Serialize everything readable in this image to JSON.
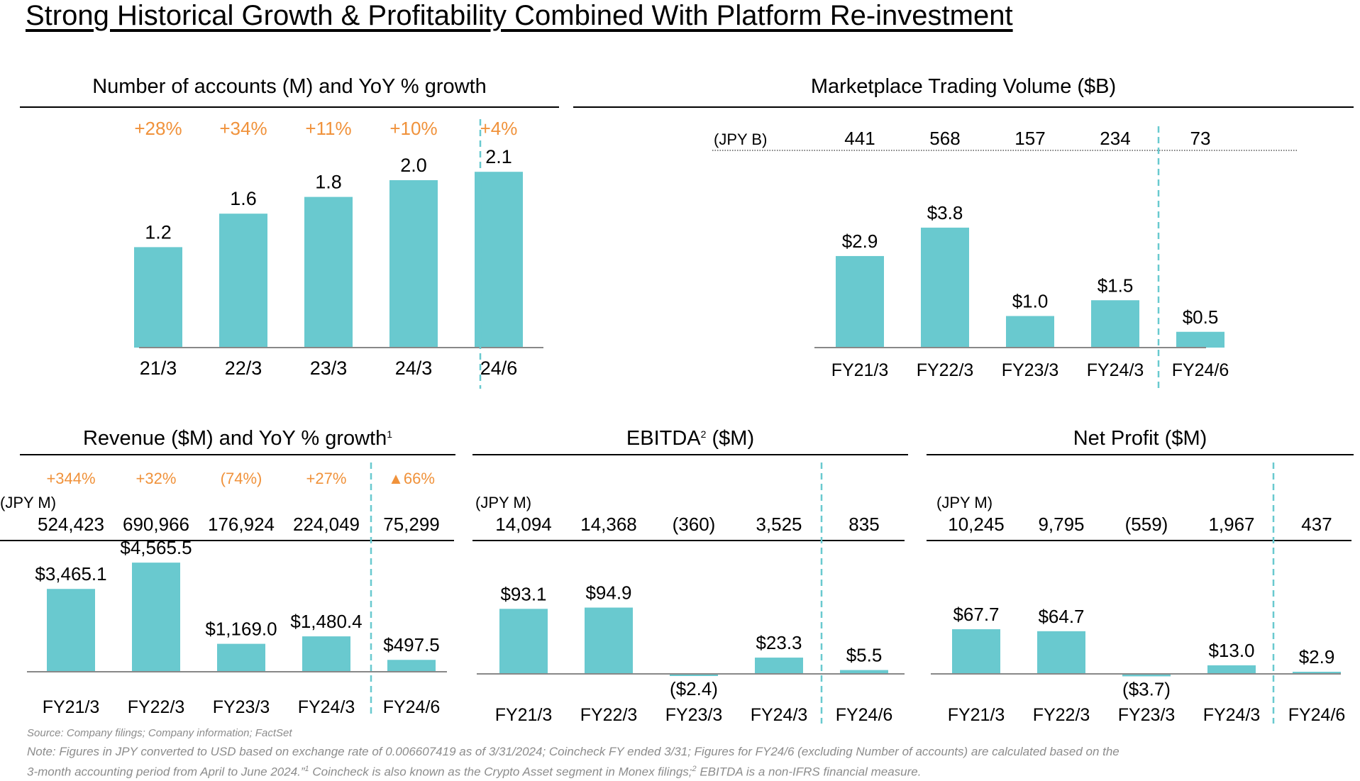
{
  "page": {
    "title": "Strong Historical Growth & Profitability Combined With Platform Re-investment"
  },
  "colors": {
    "bar": "#69c9cf",
    "growth": "#f0923b",
    "divider": "#69c9cf",
    "axis": "#888888"
  },
  "footer": {
    "source": "Source: Company filings; Company information; FactSet",
    "note_line1": "Note: Figures in JPY converted to USD based on exchange rate of 0.006607419 as of 3/31/2024; Coincheck FY ended 3/31; Figures for FY24/6 (excluding Number of accounts) are calculated based on the",
    "note_line2a": "3-month accounting period from April to June 2024.”",
    "note_sup1": "1",
    "note_line2b": " Coincheck is also known as the Crypto Asset segment in Monex filings;",
    "note_sup2": "2",
    "note_line2c": " EBITDA is a non-IFRS financial measure."
  },
  "chart_data": [
    {
      "id": "accounts",
      "type": "bar",
      "title": "Number of accounts (M) and YoY % growth",
      "categories": [
        "21/3",
        "22/3",
        "23/3",
        "24/3",
        "24/6"
      ],
      "values": [
        1.2,
        1.6,
        1.8,
        2.0,
        2.1
      ],
      "value_labels": [
        "1.2",
        "1.6",
        "1.8",
        "2.0",
        "2.1"
      ],
      "growth": [
        "+28%",
        "+34%",
        "+11%",
        "+10%",
        "+4%"
      ],
      "divider_after_index": 3
    },
    {
      "id": "trading",
      "type": "bar",
      "title": "Marketplace Trading Volume ($B)",
      "categories": [
        "FY21/3",
        "FY22/3",
        "FY23/3",
        "FY24/3",
        "FY24/6"
      ],
      "values": [
        2.9,
        3.8,
        1.0,
        1.5,
        0.5
      ],
      "value_labels": [
        "$2.9",
        "$3.8",
        "$1.0",
        "$1.5",
        "$0.5"
      ],
      "jpy_label": "(JPY B)",
      "jpy_values": [
        "441",
        "568",
        "157",
        "234",
        "73"
      ],
      "divider_after_index": 3
    },
    {
      "id": "revenue",
      "type": "bar",
      "title": "Revenue ($M) and YoY % growth",
      "title_sup": "1",
      "categories": [
        "FY21/3",
        "FY22/3",
        "FY23/3",
        "FY24/3",
        "FY24/6"
      ],
      "values": [
        3465.1,
        4565.5,
        1169.0,
        1480.4,
        497.5
      ],
      "value_labels": [
        "$3,465.1",
        "$4,565.5",
        "$1,169.0",
        "$1,480.4",
        "$497.5"
      ],
      "growth": [
        "+344%",
        "+32%",
        "(74%)",
        "+27%",
        "▲66%"
      ],
      "jpy_label": "(JPY M)",
      "jpy_values": [
        "524,423",
        "690,966",
        "176,924",
        "224,049",
        "75,299"
      ],
      "divider_after_index": 3
    },
    {
      "id": "ebitda",
      "type": "bar",
      "title": "EBITDA",
      "title_sup": "2",
      "title_suffix": " ($M)",
      "categories": [
        "FY21/3",
        "FY22/3",
        "FY23/3",
        "FY24/3",
        "FY24/6"
      ],
      "values": [
        93.1,
        94.9,
        -2.4,
        23.3,
        5.5
      ],
      "value_labels": [
        "$93.1",
        "$94.9",
        "($2.4)",
        "$23.3",
        "$5.5"
      ],
      "jpy_label": "(JPY M)",
      "jpy_values": [
        "14,094",
        "14,368",
        "(360)",
        "3,525",
        "835"
      ],
      "divider_after_index": 3
    },
    {
      "id": "netprofit",
      "type": "bar",
      "title": "Net Profit ($M)",
      "categories": [
        "FY21/3",
        "FY22/3",
        "FY23/3",
        "FY24/3",
        "FY24/6"
      ],
      "values": [
        67.7,
        64.7,
        -3.7,
        13.0,
        2.9
      ],
      "value_labels": [
        "$67.7",
        "$64.7",
        "($3.7)",
        "$13.0",
        "$2.9"
      ],
      "jpy_label": "(JPY M)",
      "jpy_values": [
        "10,245",
        "9,795",
        "(559)",
        "1,967",
        "437"
      ],
      "divider_after_index": 3
    }
  ]
}
